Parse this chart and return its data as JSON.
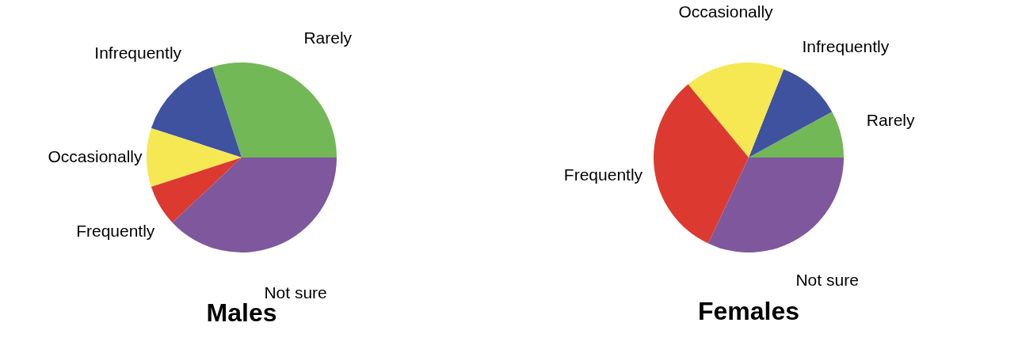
{
  "chart_data": [
    {
      "type": "pie",
      "title": "Males",
      "categories": [
        "Rarely",
        "Infrequently",
        "Occasionally",
        "Frequently",
        "Not sure"
      ],
      "values": [
        30,
        15,
        10,
        7,
        38
      ],
      "colors": [
        "#72b857",
        "#3f52a0",
        "#f5e853",
        "#dc3a30",
        "#7f579d"
      ]
    },
    {
      "type": "pie",
      "title": "Females",
      "categories": [
        "Rarely",
        "Infrequently",
        "Occasionally",
        "Frequently",
        "Not sure"
      ],
      "values": [
        8,
        11,
        17,
        32,
        32
      ],
      "colors": [
        "#72b857",
        "#3f52a0",
        "#f5e853",
        "#dc3a30",
        "#7f579d"
      ]
    }
  ]
}
